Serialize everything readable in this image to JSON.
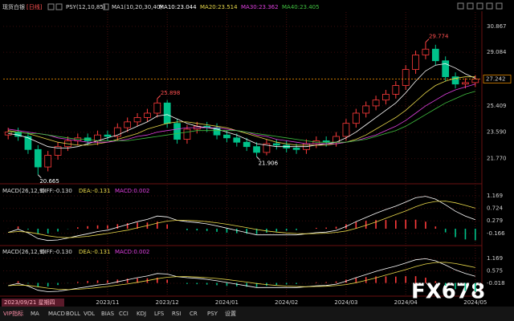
{
  "header": {
    "symbol": "现货白银",
    "period": "[日线]",
    "indicator": "PSY(12,10,85)",
    "ma_label": "MA1(10,20,30,40)"
  },
  "cursor_date": "2023/09/21 星期四",
  "watermark": "FX678",
  "toolbar": [
    "VIP指标",
    "MA",
    "MACD",
    "BOLL",
    "VOL",
    "BIAS",
    "CCI",
    "KDJ",
    "LFS",
    "RSI",
    "CR",
    "PSY",
    "设置"
  ],
  "chart_data": [
    {
      "type": "candlestick",
      "categories": [
        null,
        null,
        null,
        null,
        null,
        null,
        null,
        null,
        null,
        null,
        "2023/11",
        null,
        null,
        null,
        null,
        null,
        "2023/12",
        null,
        null,
        null,
        null,
        null,
        "2024/01",
        null,
        null,
        null,
        null,
        null,
        "2024/02",
        null,
        null,
        null,
        null,
        null,
        "2024/03",
        null,
        null,
        null,
        null,
        null,
        "2024/04",
        null,
        null,
        null,
        null,
        null,
        null,
        "2024/05"
      ],
      "open": [
        23.4,
        23.6,
        23.3,
        22.4,
        21.2,
        22.0,
        22.6,
        23.0,
        23.2,
        23.0,
        23.4,
        23.3,
        23.9,
        24.3,
        24.6,
        24.9,
        25.6,
        24.2,
        23.1,
        23.8,
        24.0,
        23.9,
        23.4,
        23.2,
        22.9,
        22.6,
        22.2,
        22.8,
        22.7,
        22.5,
        22.4,
        22.8,
        23.0,
        22.9,
        23.3,
        24.2,
        24.9,
        25.4,
        25.8,
        26.2,
        26.8,
        27.9,
        28.9,
        29.3,
        28.5,
        27.4,
        26.9,
        27.0
      ],
      "high": [
        23.9,
        23.9,
        23.6,
        22.7,
        22.3,
        22.9,
        23.3,
        23.5,
        23.5,
        23.7,
        23.7,
        24.2,
        24.6,
        24.9,
        25.2,
        25.898,
        25.8,
        24.5,
        24.1,
        24.3,
        24.3,
        24.2,
        23.7,
        23.5,
        23.2,
        22.9,
        23.1,
        23.1,
        23.0,
        22.8,
        23.1,
        23.3,
        23.3,
        23.6,
        24.5,
        25.2,
        25.7,
        26.1,
        26.5,
        27.1,
        28.2,
        29.2,
        29.774,
        29.6,
        28.8,
        27.7,
        27.3,
        27.5
      ],
      "low": [
        23.1,
        23.0,
        22.1,
        20.665,
        20.9,
        21.7,
        22.3,
        22.7,
        22.7,
        22.7,
        23.0,
        23.0,
        23.6,
        24.0,
        24.3,
        24.6,
        23.9,
        22.8,
        22.8,
        23.5,
        23.6,
        23.1,
        22.9,
        22.6,
        22.3,
        21.906,
        22.0,
        22.4,
        22.2,
        22.1,
        22.1,
        22.5,
        22.6,
        22.6,
        23.0,
        23.9,
        24.6,
        25.1,
        25.5,
        25.9,
        26.5,
        27.6,
        28.6,
        28.2,
        27.1,
        26.6,
        26.6,
        26.7
      ],
      "close": [
        23.6,
        23.3,
        22.4,
        21.2,
        22.0,
        22.6,
        23.0,
        23.2,
        23.0,
        23.4,
        23.3,
        23.9,
        24.3,
        24.6,
        24.9,
        25.6,
        24.2,
        23.1,
        23.8,
        24.0,
        23.9,
        23.4,
        23.2,
        22.9,
        22.6,
        22.2,
        22.8,
        22.7,
        22.5,
        22.4,
        22.8,
        23.0,
        22.9,
        23.3,
        24.2,
        24.9,
        25.4,
        25.8,
        26.2,
        26.8,
        27.9,
        28.9,
        29.3,
        28.5,
        27.4,
        26.9,
        27.0,
        27.24
      ],
      "up_color": "#ff3b3b",
      "down_color": "#00c28a",
      "series": [
        {
          "name": "MA10:23.044",
          "color": "#ffffff",
          "values": [
            23.5,
            23.4,
            23.2,
            22.9,
            22.6,
            22.5,
            22.5,
            22.6,
            22.8,
            23.0,
            23.2,
            23.4,
            23.7,
            24.0,
            24.3,
            24.7,
            24.8,
            24.5,
            24.2,
            24.0,
            23.9,
            23.8,
            23.6,
            23.4,
            23.1,
            22.8,
            22.7,
            22.6,
            22.6,
            22.6,
            22.6,
            22.7,
            22.8,
            22.9,
            23.2,
            23.6,
            24.1,
            24.6,
            25.1,
            25.6,
            26.3,
            27.1,
            27.8,
            28.2,
            28.3,
            28.0,
            27.6,
            27.3
          ]
        },
        {
          "name": "MA20:23.514",
          "color": "#e8d84a",
          "values": [
            23.7,
            23.6,
            23.5,
            23.3,
            23.1,
            22.9,
            22.8,
            22.7,
            22.7,
            22.8,
            22.9,
            23.1,
            23.3,
            23.5,
            23.8,
            24.0,
            24.2,
            24.3,
            24.3,
            24.2,
            24.1,
            24.0,
            23.9,
            23.7,
            23.5,
            23.3,
            23.1,
            22.9,
            22.8,
            22.7,
            22.7,
            22.7,
            22.7,
            22.8,
            22.9,
            23.1,
            23.4,
            23.8,
            24.2,
            24.6,
            25.1,
            25.7,
            26.3,
            26.8,
            27.1,
            27.3,
            27.4,
            27.4
          ]
        },
        {
          "name": "MA30:23.362",
          "color": "#e040e0",
          "values": [
            23.8,
            23.7,
            23.6,
            23.5,
            23.4,
            23.2,
            23.1,
            23.0,
            22.9,
            22.9,
            22.9,
            23.0,
            23.1,
            23.3,
            23.4,
            23.6,
            23.7,
            23.8,
            23.9,
            23.9,
            23.9,
            23.9,
            23.8,
            23.7,
            23.6,
            23.4,
            23.3,
            23.1,
            23.0,
            22.9,
            22.8,
            22.8,
            22.8,
            22.8,
            22.9,
            23.0,
            23.2,
            23.4,
            23.7,
            24.0,
            24.4,
            24.9,
            25.4,
            25.8,
            26.2,
            26.5,
            26.7,
            26.9
          ]
        },
        {
          "name": "MA40:23.405",
          "color": "#40c040",
          "values": [
            23.6,
            23.6,
            23.5,
            23.5,
            23.4,
            23.3,
            23.2,
            23.1,
            23.1,
            23.0,
            23.0,
            23.0,
            23.0,
            23.1,
            23.2,
            23.3,
            23.4,
            23.5,
            23.6,
            23.7,
            23.7,
            23.7,
            23.7,
            23.7,
            23.6,
            23.5,
            23.4,
            23.3,
            23.2,
            23.1,
            23.0,
            22.9,
            22.9,
            22.9,
            22.9,
            23.0,
            23.1,
            23.3,
            23.5,
            23.7,
            24.0,
            24.4,
            24.8,
            25.2,
            25.6,
            25.9,
            26.2,
            26.4
          ]
        }
      ],
      "last_price": 27.242,
      "last_price_color": "#ff9900",
      "ylim": [
        20.1,
        31.85
      ],
      "yticks": [
        {
          "value": 21.77,
          "label": "21.770"
        },
        {
          "value": 23.59,
          "label": "23.590"
        },
        25.409,
        29.084,
        30.867
      ]
    },
    {
      "type": "macd",
      "legend": [
        {
          "text": "MACD(26,12,9)",
          "color": "#dddddd"
        },
        {
          "text": "DIFF:-0.130",
          "color": "#dddddd"
        },
        {
          "text": "DEA:-0.131",
          "color": "#e8d84a"
        },
        {
          "text": "MACD:0.002",
          "color": "#e040e0"
        }
      ],
      "series": [
        {
          "name": "DIFF",
          "color": "#ffffff",
          "values": [
            -0.13,
            -0.02,
            -0.15,
            -0.35,
            -0.42,
            -0.4,
            -0.33,
            -0.25,
            -0.18,
            -0.1,
            -0.05,
            0.05,
            0.15,
            0.25,
            0.33,
            0.45,
            0.42,
            0.3,
            0.25,
            0.22,
            0.17,
            0.1,
            0.02,
            -0.06,
            -0.14,
            -0.22,
            -0.22,
            -0.22,
            -0.22,
            -0.22,
            -0.18,
            -0.14,
            -0.12,
            -0.06,
            0.08,
            0.25,
            0.4,
            0.55,
            0.68,
            0.8,
            0.95,
            1.1,
            1.15,
            1.05,
            0.85,
            0.62,
            0.45,
            0.32
          ]
        },
        {
          "name": "DEA",
          "color": "#e8d84a",
          "values": [
            -0.131,
            -0.1,
            -0.12,
            -0.18,
            -0.25,
            -0.3,
            -0.32,
            -0.3,
            -0.27,
            -0.22,
            -0.17,
            -0.11,
            -0.05,
            0.03,
            0.11,
            0.2,
            0.27,
            0.3,
            0.3,
            0.28,
            0.25,
            0.21,
            0.16,
            0.1,
            0.04,
            -0.03,
            -0.08,
            -0.12,
            -0.15,
            -0.17,
            -0.18,
            -0.17,
            -0.16,
            -0.13,
            -0.08,
            0.01,
            0.12,
            0.24,
            0.37,
            0.5,
            0.63,
            0.78,
            0.9,
            0.97,
            0.98,
            0.92,
            0.83,
            0.73
          ]
        }
      ],
      "histogram": [
        0.002,
        0.08,
        -0.03,
        -0.17,
        -0.17,
        -0.1,
        -0.01,
        0.05,
        0.09,
        0.12,
        0.12,
        0.16,
        0.2,
        0.22,
        0.22,
        0.25,
        0.15,
        0,
        -0.05,
        -0.06,
        -0.08,
        -0.11,
        -0.14,
        -0.16,
        -0.18,
        -0.19,
        -0.14,
        -0.1,
        -0.07,
        -0.05,
        0,
        0.03,
        0.04,
        0.07,
        0.16,
        0.24,
        0.28,
        0.31,
        0.31,
        0.3,
        0.32,
        0.32,
        0.25,
        0.08,
        -0.13,
        -0.3,
        -0.38,
        -0.41
      ],
      "ylim": [
        -0.57,
        1.51
      ],
      "yticks": [
        -0.166,
        0.279,
        0.724,
        1.169
      ]
    },
    {
      "type": "macd",
      "legend": [
        {
          "text": "MACD(26,12,9)",
          "color": "#dddddd"
        },
        {
          "text": "DIFF:-0.130",
          "color": "#dddddd"
        },
        {
          "text": "DEA:-0.131",
          "color": "#e8d84a"
        },
        {
          "text": "MACD:0.002",
          "color": "#e040e0"
        }
      ],
      "ylim": [
        -0.59,
        1.7
      ],
      "yticks": [
        -0.018,
        0.575,
        1.169
      ]
    }
  ]
}
